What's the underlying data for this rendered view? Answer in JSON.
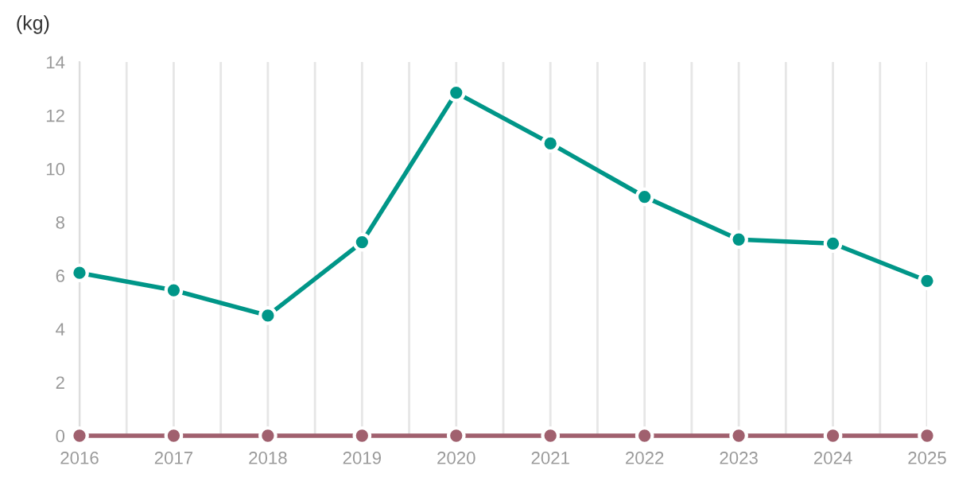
{
  "chart_data": {
    "type": "line",
    "ylabel": "(kg)",
    "x": [
      2016,
      2017,
      2018,
      2019,
      2020,
      2021,
      2022,
      2023,
      2024,
      2025
    ],
    "series": [
      {
        "color": "#009688",
        "values": [
          6.1,
          5.45,
          4.5,
          7.25,
          12.85,
          10.95,
          8.95,
          7.35,
          7.2,
          5.8
        ]
      },
      {
        "color": "#a0606e",
        "values": [
          0,
          0,
          0,
          0,
          0,
          0,
          0,
          0,
          0,
          0
        ]
      }
    ],
    "xlim": [
      2016,
      2025
    ],
    "ylim": [
      0,
      14
    ],
    "xticks": [
      2016,
      {
        "value": 2016.5,
        "label": null
      },
      2017,
      {
        "value": 2017.5,
        "label": null
      },
      2018,
      {
        "value": 2018.5,
        "label": null
      },
      2019,
      {
        "value": 2019.5,
        "label": null
      },
      2020,
      {
        "value": 2020.5,
        "label": null
      },
      2021,
      {
        "value": 2021.5,
        "label": null
      },
      2022,
      {
        "value": 2022.5,
        "label": null
      },
      2023,
      {
        "value": 2023.5,
        "label": null
      },
      2024,
      {
        "value": 2024.5,
        "label": null
      },
      2025
    ],
    "yticks": [
      0,
      2,
      4,
      6,
      8,
      10,
      12,
      14
    ],
    "grid": "x",
    "marker": "circle",
    "line_style": "solid"
  }
}
